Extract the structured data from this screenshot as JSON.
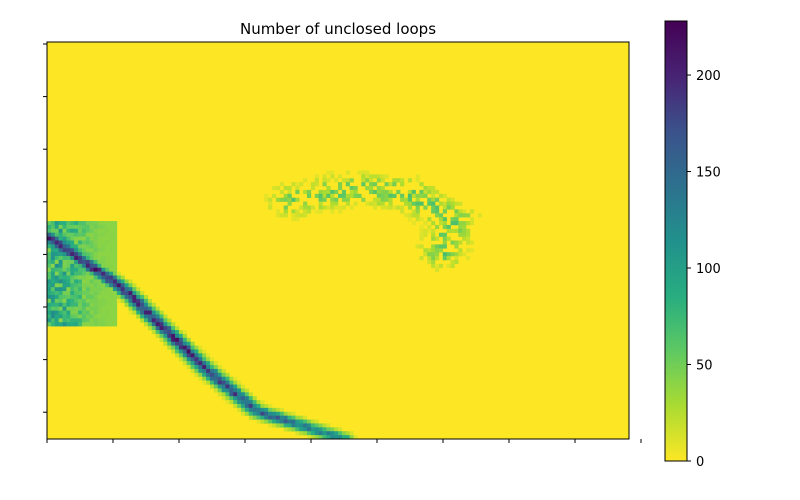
{
  "chart_data": {
    "type": "heatmap",
    "title": "Number of unclosed loops",
    "xlabel": "",
    "ylabel": "",
    "x_tick_count": 10,
    "y_tick_count": 8,
    "colormap": "viridis_r",
    "colorbar": {
      "range": [
        0,
        228
      ],
      "ticks": [
        0,
        50,
        100,
        150,
        200
      ]
    },
    "background_value": 0,
    "features": [
      {
        "name": "ridge",
        "points": [
          [
            0.0,
            0.49
          ],
          [
            0.07,
            0.56
          ],
          [
            0.13,
            0.62
          ],
          [
            0.2,
            0.72
          ],
          [
            0.27,
            0.82
          ],
          [
            0.36,
            0.93
          ],
          [
            0.51,
            1.0
          ]
        ],
        "peak_value": 225
      },
      {
        "name": "arc",
        "points": [
          [
            0.42,
            0.4
          ],
          [
            0.52,
            0.37
          ],
          [
            0.62,
            0.38
          ],
          [
            0.7,
            0.45
          ],
          [
            0.68,
            0.53
          ]
        ],
        "peak_value": 120
      }
    ]
  }
}
